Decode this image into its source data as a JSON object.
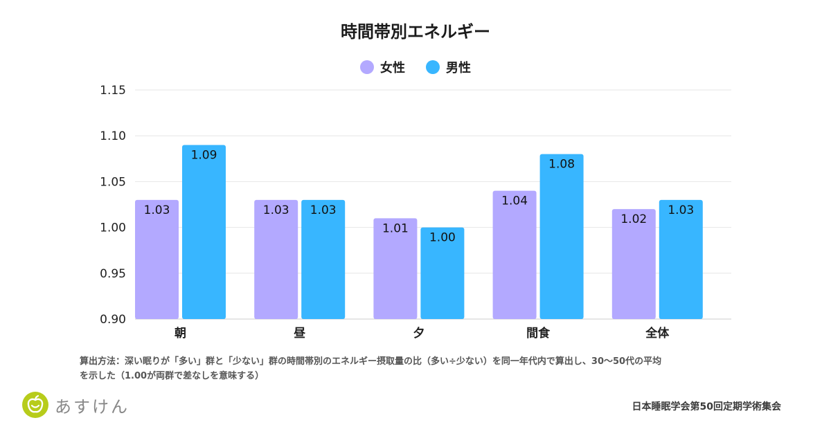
{
  "chart_data": {
    "type": "bar",
    "title": "時間帯別エネルギー",
    "categories": [
      "朝",
      "昼",
      "夕",
      "間食",
      "全体"
    ],
    "series": [
      {
        "name": "女性",
        "color": "#b3a9ff",
        "values": [
          1.03,
          1.03,
          1.01,
          1.04,
          1.02
        ]
      },
      {
        "name": "男性",
        "color": "#38b6ff",
        "values": [
          1.09,
          1.03,
          1.0,
          1.08,
          1.03
        ]
      }
    ],
    "ylim": [
      0.9,
      1.15
    ],
    "yticks": [
      "0.90",
      "0.95",
      "1.00",
      "1.05",
      "1.10",
      "1.15"
    ],
    "grid": true,
    "legend_position": "top-center",
    "data_labels": true
  },
  "note": {
    "line1": "算出方法：深い眠りが「多い」群と「少ない」群の時間帯別のエネルギー摂取量の比（多い÷少ない）を同一年代内で算出し、30〜50代の平均",
    "line2": "を示した（1.00が両群で差なしを意味する）"
  },
  "logo": {
    "text": "あすけん",
    "color": "#b7cc1b",
    "icon": "apple-icon"
  },
  "source": "日本睡眠学会第50回定期学術集会"
}
